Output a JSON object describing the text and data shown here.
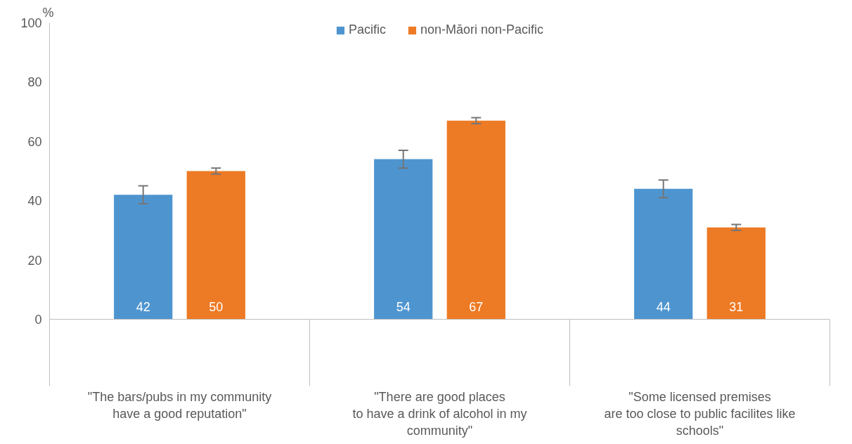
{
  "chart_data": {
    "type": "bar",
    "ylabel": "%",
    "categories": [
      "\"The bars/pubs in my community\nhave a good reputation\"",
      "\"There are good places\nto have a drink of alcohol in my\ncommunity\"",
      "\"Some licensed premises\nare too close to public facilites like\nschools\""
    ],
    "series": [
      {
        "name": "Pacific",
        "color": "#4e95d0",
        "values": [
          42,
          54,
          44
        ],
        "errors": [
          3,
          3,
          3
        ]
      },
      {
        "name": "non-Māori non-Pacific",
        "color": "#ed7a24",
        "values": [
          50,
          67,
          31
        ],
        "errors": [
          1,
          1,
          1
        ]
      }
    ],
    "ylim": [
      0,
      100
    ],
    "yticks": [
      0,
      20,
      40,
      60,
      80,
      100
    ],
    "data_labels": true,
    "legend": "top",
    "grid": false
  }
}
